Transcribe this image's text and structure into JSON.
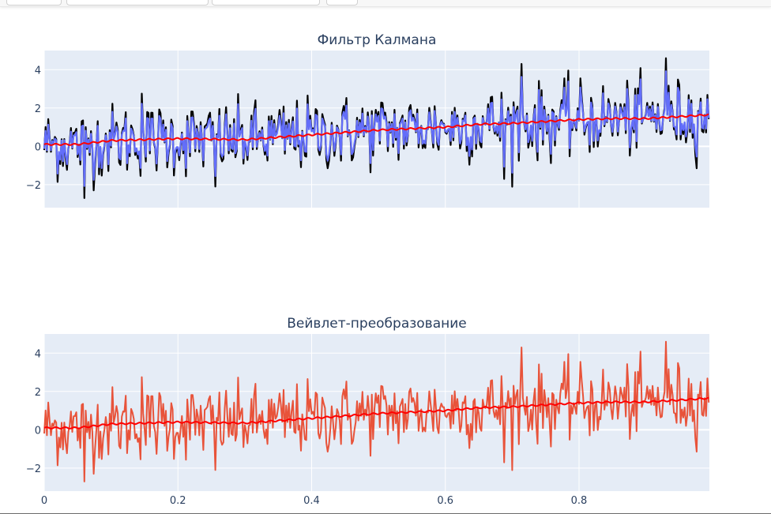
{
  "chart_data": [
    {
      "type": "line",
      "title": "Фильтр Калмана",
      "xlabel": "",
      "ylabel": "",
      "xlim": [
        0,
        0.995
      ],
      "ylim": [
        -3.2,
        5
      ],
      "yticks": [
        "4",
        "2",
        "0",
        "−2"
      ],
      "ytick_values": [
        4,
        2,
        0,
        -2
      ],
      "grid": true,
      "series": [
        {
          "color": "#000000",
          "description_key": "noisy",
          "x_step": 0.002,
          "n": 498
        },
        {
          "color": "#636efa",
          "description_key": "kalman",
          "x_step": 0.002,
          "n": 498
        },
        {
          "color": "#ff0000",
          "description_key": "trend",
          "points": [
            [
              0,
              0.1
            ],
            [
              0.05,
              0.1
            ],
            [
              0.1,
              0.3
            ],
            [
              0.2,
              0.4
            ],
            [
              0.3,
              0.35
            ],
            [
              0.4,
              0.6
            ],
            [
              0.5,
              0.85
            ],
            [
              0.6,
              1.0
            ],
            [
              0.65,
              1.15
            ],
            [
              0.7,
              1.2
            ],
            [
              0.8,
              1.4
            ],
            [
              0.85,
              1.45
            ],
            [
              0.9,
              1.45
            ],
            [
              0.95,
              1.55
            ],
            [
              0.995,
              1.65
            ]
          ]
        }
      ]
    },
    {
      "type": "line",
      "title": "Вейвлет-преобразование",
      "xlabel": "",
      "ylabel": "",
      "xlim": [
        0,
        0.995
      ],
      "ylim": [
        -3.2,
        5
      ],
      "xticks": [
        "0",
        "0.2",
        "0.4",
        "0.6",
        "0.8"
      ],
      "xtick_values": [
        0,
        0.2,
        0.4,
        0.6,
        0.8
      ],
      "yticks": [
        "4",
        "2",
        "0",
        "−2"
      ],
      "ytick_values": [
        4,
        2,
        0,
        -2
      ],
      "grid": true,
      "series": [
        {
          "color": "#e8533a",
          "description_key": "noisy",
          "x_step": 0.002,
          "n": 498
        },
        {
          "color": "#ff0000",
          "description_key": "trend",
          "points": [
            [
              0,
              0.1
            ],
            [
              0.05,
              0.1
            ],
            [
              0.1,
              0.3
            ],
            [
              0.2,
              0.4
            ],
            [
              0.3,
              0.35
            ],
            [
              0.4,
              0.6
            ],
            [
              0.5,
              0.85
            ],
            [
              0.6,
              1.0
            ],
            [
              0.65,
              1.15
            ],
            [
              0.7,
              1.2
            ],
            [
              0.8,
              1.4
            ],
            [
              0.85,
              1.45
            ],
            [
              0.9,
              1.45
            ],
            [
              0.95,
              1.55
            ],
            [
              0.995,
              1.65
            ]
          ]
        }
      ]
    }
  ],
  "colors": {
    "plot_bg": "#e5ecf6",
    "grid": "#ffffff",
    "text": "#2a3f5f"
  }
}
